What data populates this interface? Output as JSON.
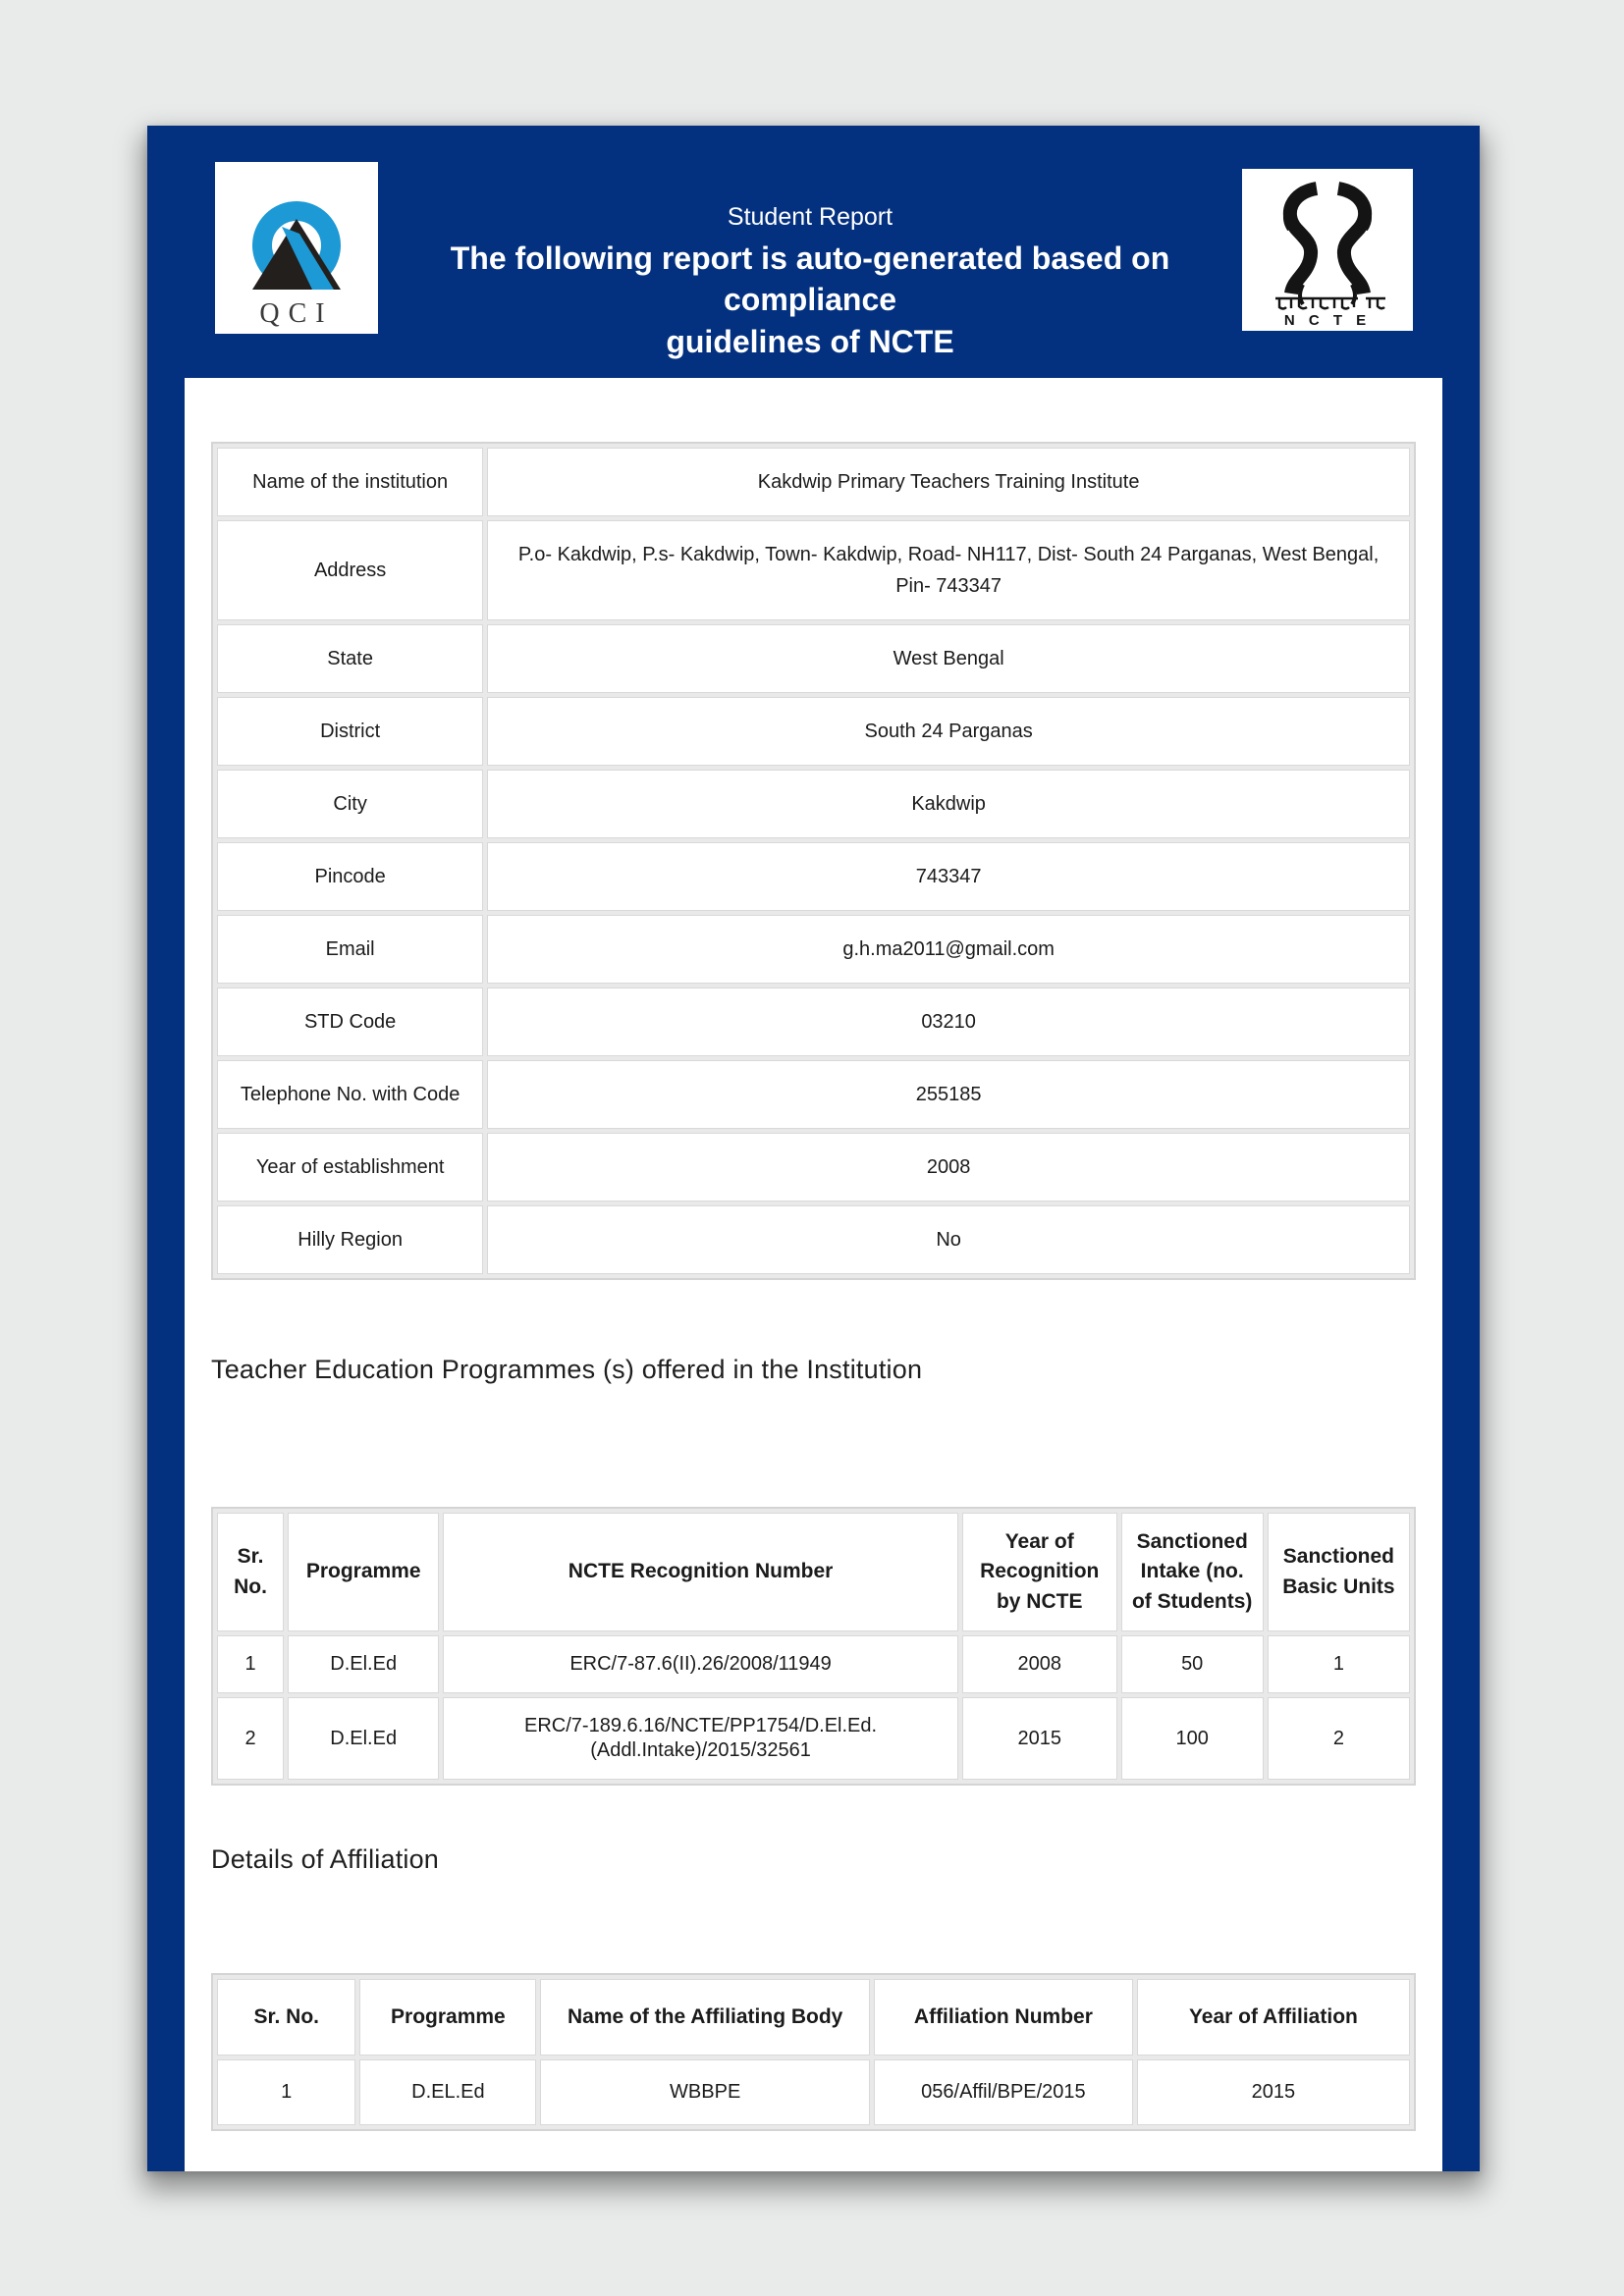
{
  "header": {
    "title": "Student Report",
    "subtitle_line1": "The following report is auto-generated based on compliance",
    "subtitle_line2": "guidelines of NCTE",
    "qci_logo": {
      "caption": "QCI"
    },
    "ncte_logo": {
      "hindi_text": "गुरुर्गुरुतमो धाम",
      "caption": "N C T E"
    }
  },
  "colors": {
    "page_blue": "#04317f",
    "qci_blue": "#1d99d5",
    "emblem_black": "#141414",
    "table_grout": "#e9e9e9"
  },
  "institution_table": {
    "cell_names": [
      "row-label",
      "row-value"
    ],
    "rows": [
      [
        "Name of the institution",
        "Kakdwip Primary Teachers Training Institute"
      ],
      [
        "Address",
        "P.o- Kakdwip, P.s- Kakdwip, Town- Kakdwip, Road- NH117, Dist- South 24 Parganas, West Bengal, Pin- 743347"
      ],
      [
        "State",
        "West Bengal"
      ],
      [
        "District",
        "South 24 Parganas"
      ],
      [
        "City",
        "Kakdwip"
      ],
      [
        "Pincode",
        "743347"
      ],
      [
        "Email",
        "g.h.ma2011@gmail.com"
      ],
      [
        "STD Code",
        "03210"
      ],
      [
        "Telephone No. with Code",
        "255185"
      ],
      [
        "Year of establishment",
        "2008"
      ],
      [
        "Hilly Region",
        "No"
      ]
    ]
  },
  "programmes_section": {
    "heading": "Teacher Education Programmes (s) offered in the Institution",
    "table": {
      "headers": [
        "Sr. No.",
        "Programme",
        "NCTE Recognition Number",
        "Year of Recognition by NCTE",
        "Sanctioned Intake (no. of Students)",
        "Sanctioned Basic Units"
      ],
      "rows": [
        [
          "1",
          "D.El.Ed",
          "ERC/7-87.6(II).26/2008/11949",
          "2008",
          "50",
          "1"
        ],
        [
          "2",
          "D.El.Ed",
          "ERC/7-189.6.16/NCTE/PP1754/D.El.Ed.(Addl.Intake)/2015/32561",
          "2015",
          "100",
          "2"
        ]
      ]
    }
  },
  "affiliation_section": {
    "heading": "Details of Affiliation",
    "table": {
      "headers": [
        "Sr. No.",
        "Programme",
        "Name of the Affiliating Body",
        "Affiliation Number",
        "Year of Affiliation"
      ],
      "rows": [
        [
          "1",
          "D.EL.Ed",
          "WBBPE",
          "056/Affil/BPE/2015",
          "2015"
        ]
      ]
    }
  }
}
